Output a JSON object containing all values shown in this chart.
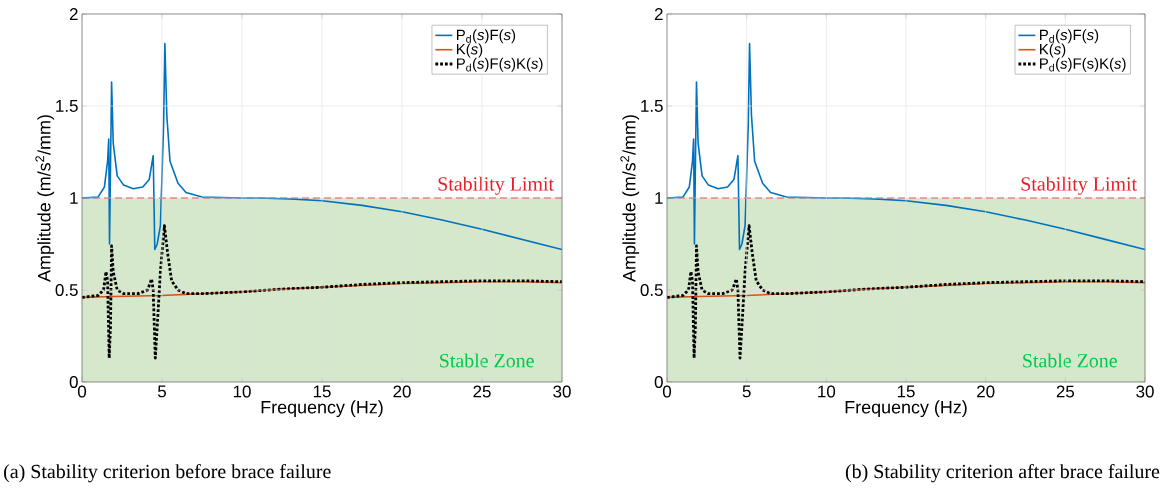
{
  "chart_data": [
    {
      "type": "line",
      "xlabel": "Frequency (Hz)",
      "ylabel": "Amplitude (m/s$^{2}$/mm)",
      "xlim": [
        0,
        30
      ],
      "ylim": [
        0,
        2
      ],
      "xticks": [
        0,
        5,
        10,
        15,
        20,
        25,
        30
      ],
      "yticks": [
        0,
        0.5,
        1,
        1.5,
        2
      ],
      "grid": true,
      "legend": "top right",
      "series": [
        {
          "name": "P$_{d}$(*s*)F(*s*)",
          "color": "#0072bd",
          "line_style": "solid",
          "x": [
            0,
            1.0,
            1.4,
            1.6,
            1.67,
            1.72,
            1.85,
            1.95,
            2.2,
            2.6,
            3.2,
            3.8,
            4.2,
            4.45,
            4.55,
            4.7,
            4.9,
            5.1,
            5.18,
            5.3,
            5.5,
            6.0,
            6.5,
            7.5,
            10,
            11,
            13,
            15,
            17.5,
            20,
            22.5,
            25,
            27.5,
            30
          ],
          "values": [
            1.0,
            1.005,
            1.06,
            1.2,
            1.32,
            0.75,
            1.63,
            1.3,
            1.12,
            1.07,
            1.05,
            1.06,
            1.1,
            1.23,
            0.72,
            0.75,
            0.85,
            1.4,
            1.84,
            1.45,
            1.2,
            1.08,
            1.03,
            1.005,
            1.0,
            1.0,
            0.995,
            0.985,
            0.96,
            0.925,
            0.88,
            0.83,
            0.775,
            0.72
          ]
        },
        {
          "name": "K(*s*)",
          "color": "#d95319",
          "line_style": "solid",
          "x": [
            0,
            2,
            5,
            7.5,
            10,
            12.5,
            15,
            17.5,
            20,
            22.5,
            25,
            27.5,
            30
          ],
          "values": [
            0.46,
            0.465,
            0.47,
            0.48,
            0.49,
            0.505,
            0.515,
            0.525,
            0.535,
            0.54,
            0.545,
            0.545,
            0.54
          ]
        },
        {
          "name": "P$_{d}$(*s*)F(s)K(*s*)",
          "color": "#000000",
          "line_style": "dotted",
          "x": [
            0,
            1.0,
            1.35,
            1.5,
            1.6,
            1.7,
            1.78,
            1.85,
            1.95,
            2.2,
            2.6,
            3.5,
            4.1,
            4.35,
            4.45,
            4.58,
            4.7,
            4.9,
            5.15,
            5.35,
            5.6,
            6.0,
            6.5,
            7.5,
            10,
            12.5,
            15,
            17.5,
            20,
            22.5,
            25,
            27.5,
            30
          ],
          "values": [
            0.46,
            0.47,
            0.5,
            0.6,
            0.55,
            0.13,
            0.3,
            0.74,
            0.6,
            0.5,
            0.48,
            0.48,
            0.5,
            0.56,
            0.5,
            0.13,
            0.3,
            0.6,
            0.85,
            0.7,
            0.55,
            0.5,
            0.48,
            0.48,
            0.49,
            0.505,
            0.515,
            0.53,
            0.54,
            0.545,
            0.55,
            0.55,
            0.545
          ]
        }
      ],
      "ref_lines": [
        {
          "axis": "y",
          "value": 1,
          "label": "Stability Limit",
          "color": "#e8202a",
          "line_style": "dashed"
        }
      ],
      "bands": [
        {
          "axis": "y",
          "from": 0,
          "to": 1,
          "label": "Stable Zone",
          "color": "#d6e8cb"
        }
      ],
      "annotations": [
        "(a) Stability criterion before brace failure"
      ]
    },
    {
      "type": "line",
      "xlabel": "Frequency (Hz)",
      "ylabel": "Amplitude (m/s$^{2}$/mm)",
      "xlim": [
        0,
        30
      ],
      "ylim": [
        0,
        2
      ],
      "xticks": [
        0,
        5,
        10,
        15,
        20,
        25,
        30
      ],
      "yticks": [
        0,
        0.5,
        1,
        1.5,
        2
      ],
      "grid": true,
      "legend": "top right",
      "series": [
        {
          "name": "P$_{d}$(*s*)F(*s*)",
          "color": "#0072bd",
          "line_style": "solid",
          "x": [
            0,
            1.0,
            1.4,
            1.6,
            1.67,
            1.72,
            1.85,
            1.95,
            2.2,
            2.6,
            3.2,
            3.8,
            4.2,
            4.45,
            4.55,
            4.7,
            4.9,
            5.1,
            5.18,
            5.3,
            5.5,
            6.0,
            6.5,
            7.5,
            10,
            11,
            13,
            15,
            17.5,
            20,
            22.5,
            25,
            27.5,
            30
          ],
          "values": [
            1.0,
            1.005,
            1.06,
            1.2,
            1.32,
            0.75,
            1.63,
            1.3,
            1.12,
            1.07,
            1.05,
            1.06,
            1.1,
            1.23,
            0.72,
            0.75,
            0.85,
            1.4,
            1.84,
            1.45,
            1.2,
            1.08,
            1.03,
            1.005,
            1.0,
            1.0,
            0.995,
            0.985,
            0.96,
            0.925,
            0.88,
            0.83,
            0.775,
            0.72
          ]
        },
        {
          "name": "K(*s*)",
          "color": "#d95319",
          "line_style": "solid",
          "x": [
            0,
            2,
            5,
            7.5,
            10,
            12.5,
            15,
            17.5,
            20,
            22.5,
            25,
            27.5,
            30
          ],
          "values": [
            0.46,
            0.465,
            0.47,
            0.48,
            0.49,
            0.505,
            0.515,
            0.525,
            0.535,
            0.54,
            0.545,
            0.545,
            0.54
          ]
        },
        {
          "name": "P$_{d}$(*s*)F(s)K(*s*)",
          "color": "#000000",
          "line_style": "dotted",
          "x": [
            0,
            1.0,
            1.35,
            1.5,
            1.6,
            1.7,
            1.78,
            1.85,
            1.95,
            2.2,
            2.6,
            3.5,
            4.1,
            4.35,
            4.45,
            4.58,
            4.7,
            4.9,
            5.15,
            5.35,
            5.6,
            6.0,
            6.5,
            7.5,
            10,
            12.5,
            15,
            17.5,
            20,
            22.5,
            25,
            27.5,
            30
          ],
          "values": [
            0.46,
            0.47,
            0.5,
            0.6,
            0.55,
            0.13,
            0.3,
            0.74,
            0.6,
            0.5,
            0.48,
            0.48,
            0.5,
            0.56,
            0.5,
            0.13,
            0.3,
            0.6,
            0.85,
            0.7,
            0.55,
            0.5,
            0.48,
            0.48,
            0.49,
            0.505,
            0.515,
            0.53,
            0.54,
            0.545,
            0.55,
            0.55,
            0.545
          ]
        }
      ],
      "ref_lines": [
        {
          "axis": "y",
          "value": 1,
          "label": "Stability Limit",
          "color": "#e8202a",
          "line_style": "dashed"
        }
      ],
      "bands": [
        {
          "axis": "y",
          "from": 0,
          "to": 1,
          "label": "Stable Zone",
          "color": "#d6e8cb"
        }
      ],
      "annotations": [
        "(b) Stability criterion after brace failure"
      ]
    }
  ]
}
